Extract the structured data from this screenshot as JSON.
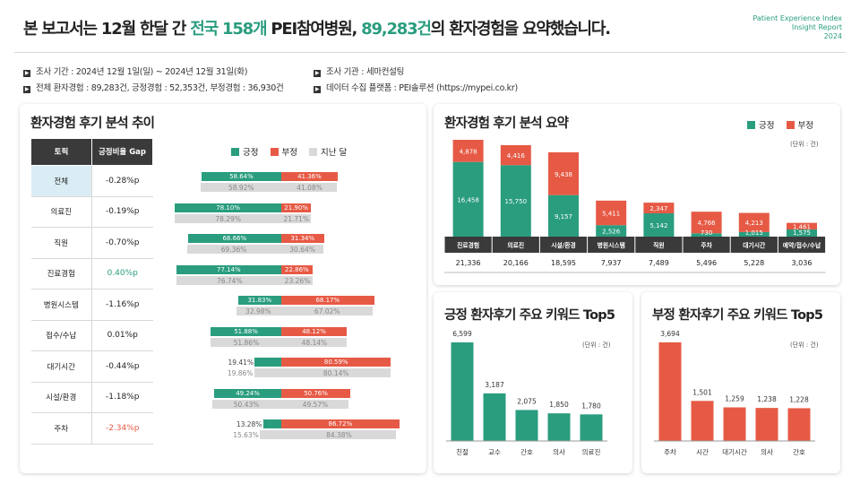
{
  "header": {
    "title_pre": "본 보고서는 12월 한달 간 ",
    "title_hl1": "전국 158개",
    "title_mid": " PEI참여병원, ",
    "title_hl2": "89,283건",
    "title_post": "의 환자경험을 요약했습니다.",
    "brand_line1": "Patient Experience Index",
    "brand_line2": "Insight Report",
    "brand_line3": "2024"
  },
  "info": {
    "period": "조사 기간 : 2024년 12월 1일(일) ~ 2024년 12월 31일(화)",
    "counts": "전체 환자경험 : 89,283건, 긍정경험 : 52,353건, 부정경험 : 36,930건",
    "agency": "조사 기관 : 세마컨설팅",
    "platform": "데이터 수집 플랫폼 : PEI솔루션 (https://mypei.co.kr)"
  },
  "trend": {
    "title": "환자경험 후기 분석 추이",
    "col_topic": "토픽",
    "col_gap": "긍정비율 Gap",
    "legend": {
      "pos": "긍정",
      "neg": "부정",
      "prev": "지난 달"
    },
    "rows": [
      {
        "topic": "전체",
        "gap": "-0.28%p",
        "gap_color": "#222222",
        "pos": "58.64%",
        "neg": "41.36%",
        "prev_pos": "58.92%",
        "prev_neg": "41.08%",
        "pos_v": 58.64,
        "prev_v": 58.92
      },
      {
        "topic": "의료진",
        "gap": "-0.19%p",
        "gap_color": "#222222",
        "pos": "78.10%",
        "neg": "21.90%",
        "prev_pos": "78.29%",
        "prev_neg": "21.71%",
        "pos_v": 78.1,
        "prev_v": 78.29
      },
      {
        "topic": "직원",
        "gap": "-0.70%p",
        "gap_color": "#222222",
        "pos": "68.66%",
        "neg": "31.34%",
        "prev_pos": "69.36%",
        "prev_neg": "30.64%",
        "pos_v": 68.66,
        "prev_v": 69.36
      },
      {
        "topic": "진료경험",
        "gap": "0.40%p",
        "gap_color": "#2a9d7f",
        "pos": "77.14%",
        "neg": "22.86%",
        "prev_pos": "76.74%",
        "prev_neg": "23.26%",
        "pos_v": 77.14,
        "prev_v": 76.74
      },
      {
        "topic": "병원시스템",
        "gap": "-1.16%p",
        "gap_color": "#222222",
        "pos": "31.83%",
        "neg": "68.17%",
        "prev_pos": "32.98%",
        "prev_neg": "67.02%",
        "pos_v": 31.83,
        "prev_v": 32.98
      },
      {
        "topic": "접수/수납",
        "gap": "0.01%p",
        "gap_color": "#222222",
        "pos": "51.88%",
        "neg": "48.12%",
        "prev_pos": "51.86%",
        "prev_neg": "48.14%",
        "pos_v": 51.88,
        "prev_v": 51.86
      },
      {
        "topic": "대기시간",
        "gap": "-0.44%p",
        "gap_color": "#222222",
        "pos": "19.41%",
        "neg": "80.59%",
        "prev_pos": "19.86%",
        "prev_neg": "80.14%",
        "pos_v": 19.41,
        "prev_v": 19.86
      },
      {
        "topic": "시설/환경",
        "gap": "-1.18%p",
        "gap_color": "#222222",
        "pos": "49.24%",
        "neg": "50.76%",
        "prev_pos": "50.43%",
        "prev_neg": "49.57%",
        "pos_v": 49.24,
        "prev_v": 50.43
      },
      {
        "topic": "주차",
        "gap": "-2.34%p",
        "gap_color": "#e65a45",
        "pos": "13.28%",
        "neg": "86.72%",
        "prev_pos": "15.63%",
        "prev_neg": "84.38%",
        "pos_v": 13.28,
        "prev_v": 15.63
      }
    ]
  },
  "summary": {
    "title": "환자경험 후기 분석 요약",
    "legend": {
      "pos": "긍정",
      "neg": "부정"
    },
    "unit": "(단위 : 건)"
  },
  "pos_kw": {
    "title": "긍정 환자후기 주요 키워드 Top5",
    "unit": "(단위 : 건)"
  },
  "neg_kw": {
    "title": "부정 환자후기 주요 키워드 Top5",
    "unit": "(단위 : 건)"
  },
  "colors": {
    "pos": "#2a9d7f",
    "neg": "#e65a45",
    "prev": "#d9d9d9",
    "dark": "#3a3a3a"
  },
  "chart_data": [
    {
      "type": "bar",
      "stacked": true,
      "categories": [
        "진료경험",
        "의료진",
        "시설/환경",
        "병원시스템",
        "직원",
        "주차",
        "대기시간",
        "예약/접수/수납"
      ],
      "series": [
        {
          "name": "긍정",
          "values": [
            16458,
            15750,
            9157,
            2526,
            5142,
            730,
            1015,
            1575
          ]
        },
        {
          "name": "부정",
          "values": [
            4878,
            4416,
            9438,
            5411,
            2347,
            4766,
            4213,
            1461
          ]
        }
      ],
      "totals": [
        21336,
        20166,
        18595,
        7937,
        7489,
        5496,
        5228,
        3036
      ]
    },
    {
      "type": "bar",
      "categories": [
        "친절",
        "교수",
        "간호",
        "의사",
        "의료진"
      ],
      "values": [
        6599,
        3187,
        2075,
        1850,
        1780
      ]
    },
    {
      "type": "bar",
      "categories": [
        "주차",
        "시간",
        "대기시간",
        "의사",
        "간호"
      ],
      "values": [
        3694,
        1501,
        1259,
        1238,
        1228
      ]
    }
  ]
}
